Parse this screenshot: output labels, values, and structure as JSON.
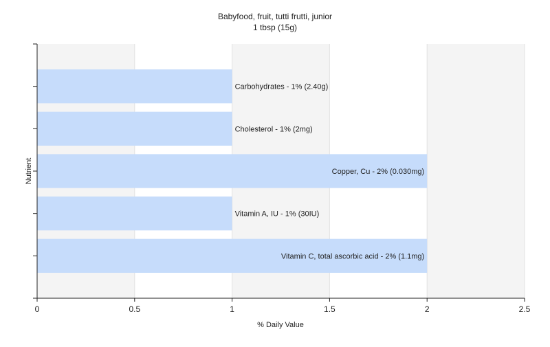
{
  "chart_data": {
    "type": "bar",
    "orientation": "horizontal",
    "title": "Babyfood, fruit, tutti frutti, junior",
    "subtitle": "1 tbsp (15g)",
    "xlabel": "% Daily Value",
    "ylabel": "Nutrient",
    "xlim": [
      0,
      2.5
    ],
    "xticks": [
      0,
      0.5,
      1,
      1.5,
      2,
      2.5
    ],
    "xtick_labels": [
      "0",
      "0.5",
      "1",
      "1.5",
      "2",
      "2.5"
    ],
    "grid": true,
    "bar_color": "#c6dcfb",
    "categories": [
      "Carbohydrates",
      "Cholesterol",
      "Copper, Cu",
      "Vitamin A, IU",
      "Vitamin C, total ascorbic acid"
    ],
    "values": [
      1,
      1,
      2,
      1,
      2
    ],
    "data_labels": [
      "Carbohydrates - 1% (2.40g)",
      "Cholesterol - 1% (2mg)",
      "Copper, Cu - 2% (0.030mg)",
      "Vitamin A, IU - 1% (30IU)",
      "Vitamin C, total ascorbic acid - 2% (1.1mg)"
    ]
  }
}
